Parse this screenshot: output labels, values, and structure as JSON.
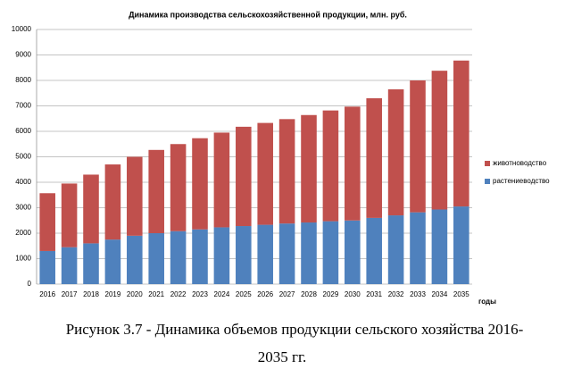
{
  "chart_data": {
    "type": "bar",
    "stacked": true,
    "title": "Динамика производства сельскохозяйственной продукции, млн. руб.",
    "x_label": "годы",
    "categories": [
      "2016",
      "2017",
      "2018",
      "2019",
      "2020",
      "2021",
      "2022",
      "2023",
      "2024",
      "2025",
      "2026",
      "2027",
      "2028",
      "2029",
      "2030",
      "2031",
      "2032",
      "2033",
      "2034",
      "2035"
    ],
    "series": [
      {
        "name": "растениеводство",
        "color": "#4f81bd",
        "values": [
          1300,
          1450,
          1600,
          1750,
          1900,
          2000,
          2080,
          2150,
          2230,
          2280,
          2330,
          2380,
          2420,
          2470,
          2500,
          2600,
          2700,
          2820,
          2930,
          3050
        ]
      },
      {
        "name": "животноводство",
        "color": "#c0504d",
        "values": [
          2270,
          2500,
          2700,
          2950,
          3100,
          3270,
          3420,
          3580,
          3720,
          3900,
          4000,
          4100,
          4220,
          4350,
          4470,
          4700,
          4950,
          5180,
          5450,
          5730
        ]
      }
    ],
    "ylim": [
      0,
      10000
    ],
    "yticks": [
      0,
      1000,
      2000,
      3000,
      4000,
      5000,
      6000,
      7000,
      8000,
      9000,
      10000
    ],
    "grid": true,
    "legend": "right",
    "caption": [
      "Рисунок 3.7 - Динамика объемов продукции сельского хозяйства 2016-",
      "2035 гг."
    ]
  }
}
